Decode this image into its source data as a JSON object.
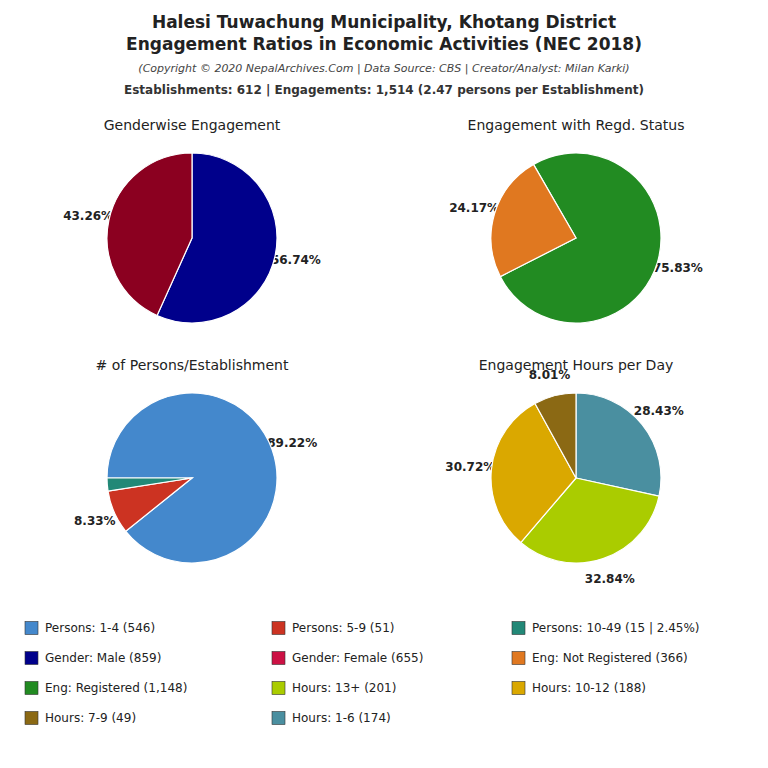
{
  "title": [
    "Halesi Tuwachung Municipality, Khotang District",
    "Engagement Ratios in Economic Activities (NEC 2018)"
  ],
  "subtitle": "(Copyright © 2020 NepalArchives.Com | Data Source: CBS | Creator/Analyst: Milan Karki)",
  "annotations": [
    "Establishments: 612 | Engagements: 1,514 (2.47 persons per Establishment)"
  ],
  "chart_data": [
    {
      "type": "pie",
      "title": "Genderwise Engagement",
      "values": [
        56.74,
        43.26
      ],
      "value_labels": [
        "56.74%",
        "43.26%"
      ],
      "colors": [
        "#00008B",
        "#8B0020"
      ],
      "data_labels": true
    },
    {
      "type": "pie",
      "title": "Engagement with Regd. Status",
      "values": [
        75.83,
        24.17
      ],
      "value_labels": [
        "75.83%",
        "24.17%"
      ],
      "colors": [
        "#228B22",
        "#E07820"
      ],
      "data_labels": true
    },
    {
      "type": "pie",
      "title": "# of Persons/Establishment",
      "values": [
        89.22,
        8.33,
        2.45
      ],
      "value_labels": [
        "89.22%",
        "8.33%",
        null
      ],
      "colors": [
        "#4488CC",
        "#CC3322",
        "#228877"
      ],
      "data_labels": true
    },
    {
      "type": "pie",
      "title": "Engagement Hours per Day",
      "values": [
        28.43,
        32.84,
        30.72,
        8.01
      ],
      "value_labels": [
        "28.43%",
        "32.84%",
        "30.72%",
        "8.01%"
      ],
      "colors": [
        "#4A8FA0",
        "#AACC00",
        "#DAA800",
        "#8B6914"
      ],
      "data_labels": true
    }
  ],
  "series": [
    {
      "name": "Persons: 1-4 (546)",
      "color": "#4488CC"
    },
    {
      "name": "Persons: 5-9 (51)",
      "color": "#CC3322"
    },
    {
      "name": "Persons: 10-49 (15 | 2.45%)",
      "color": "#228877"
    },
    {
      "name": "Gender: Male (859)",
      "color": "#00008B"
    },
    {
      "name": "Gender: Female (655)",
      "color": "#CC1144"
    },
    {
      "name": "Eng: Not Registered (366)",
      "color": "#E07820"
    },
    {
      "name": "Eng: Registered (1,148)",
      "color": "#228B22"
    },
    {
      "name": "Hours: 13+ (201)",
      "color": "#AACC00"
    },
    {
      "name": "Hours: 10-12 (188)",
      "color": "#DAA800"
    },
    {
      "name": "Hours: 7-9 (49)",
      "color": "#8B6914"
    },
    {
      "name": "Hours: 1-6 (174)",
      "color": "#4A8FA0"
    }
  ]
}
